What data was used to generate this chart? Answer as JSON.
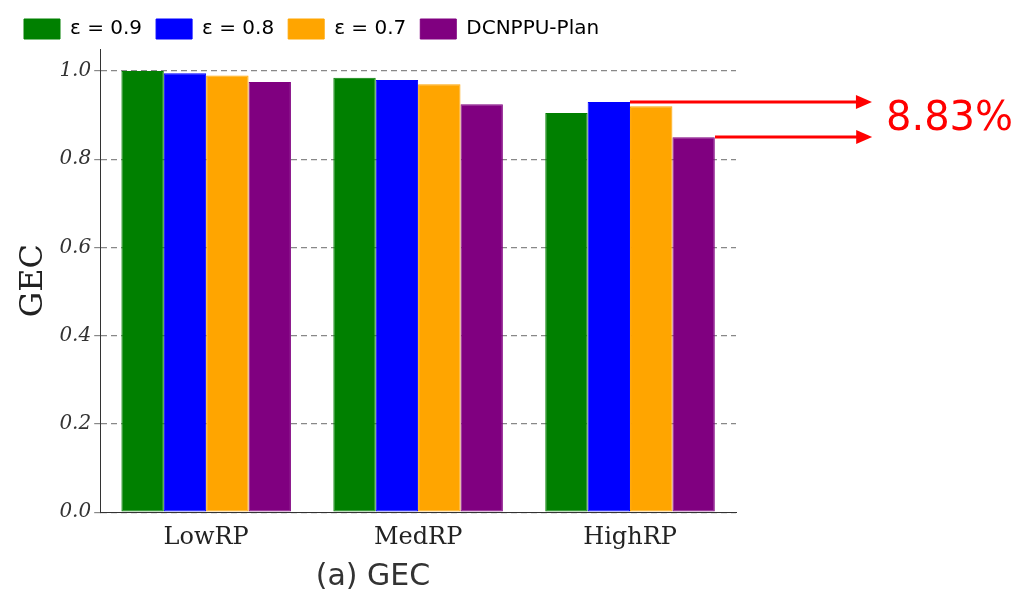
{
  "chart_data": {
    "type": "bar",
    "title": "(a) GEC",
    "ylabel": "GEC",
    "categories": [
      "LowRP",
      "MedRP",
      "HighRP"
    ],
    "series": [
      {
        "name": "ε = 0.9",
        "color": "#008000",
        "values": [
          1.0,
          0.985,
          0.905
        ]
      },
      {
        "name": "ε = 0.8",
        "color": "#0000ff",
        "values": [
          0.995,
          0.98,
          0.93
        ]
      },
      {
        "name": "ε = 0.7",
        "color": "#ffa500",
        "values": [
          0.99,
          0.97,
          0.92
        ]
      },
      {
        "name": "DCNPPU-Plan",
        "color": "#800080",
        "values": [
          0.975,
          0.925,
          0.85
        ]
      }
    ],
    "ylim": [
      0,
      1.05
    ],
    "yticks": [
      {
        "value": 0,
        "label": "0.0"
      },
      0.2,
      0.4,
      0.6,
      0.8,
      {
        "value": 1,
        "label": "1.0"
      }
    ],
    "grid": "y",
    "legend": "top",
    "annotations": [
      "8.83%"
    ]
  }
}
